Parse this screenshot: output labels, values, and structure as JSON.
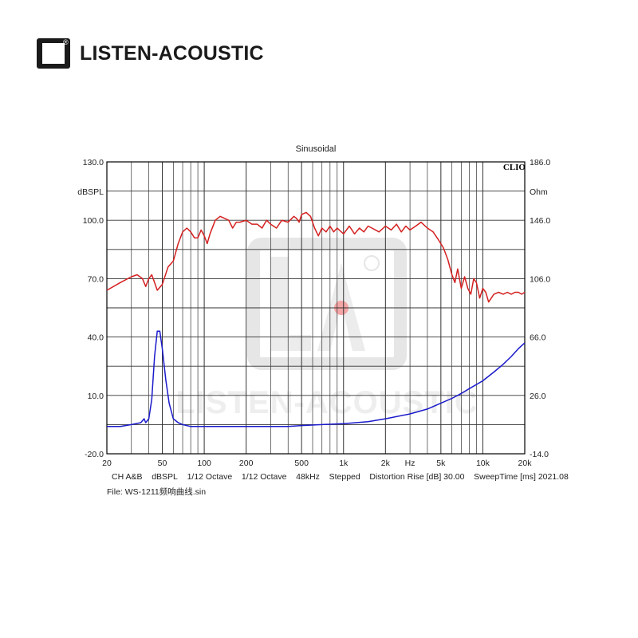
{
  "brand": {
    "logo_text": "LA",
    "registered_mark": "®",
    "name": "LISTEN-ACOUSTIC"
  },
  "chart_data": {
    "type": "line",
    "title": "Sinusoidal",
    "badge": "CLIO",
    "watermark": "LISTEN-ACOUSTIC",
    "x_scale": "log",
    "xlim": [
      20,
      20000
    ],
    "x_ticks": [
      20,
      50,
      100,
      200,
      500,
      1000,
      2000,
      5000,
      10000,
      20000
    ],
    "x_tick_labels": [
      "20",
      "50",
      "100",
      "200",
      "500",
      "1k",
      "2k",
      "5k",
      "10k",
      "20k"
    ],
    "x_unit_label": "Hz",
    "y_left": {
      "unit": "dBSPL",
      "lim": [
        -20,
        130
      ],
      "ticks": [
        130,
        100,
        70,
        40,
        10,
        -20
      ],
      "tick_labels": [
        "130.0",
        "100.0",
        "70.0",
        "40.0",
        "10.0",
        "-20.0"
      ]
    },
    "y_right": {
      "unit": "Ohm",
      "lim": [
        -14,
        186
      ],
      "ticks": [
        186,
        146,
        106,
        66,
        26,
        -14
      ],
      "tick_labels": [
        "186.0",
        "146.0",
        "106.0",
        "66.0",
        "26.0",
        "-14.0"
      ]
    },
    "grid": true,
    "series": [
      {
        "color": "#d42020",
        "axis": "left",
        "points": [
          [
            20,
            64
          ],
          [
            25,
            68
          ],
          [
            30,
            71
          ],
          [
            33,
            72
          ],
          [
            36,
            70
          ],
          [
            38,
            66
          ],
          [
            40,
            70
          ],
          [
            42,
            72
          ],
          [
            44,
            68
          ],
          [
            46,
            64
          ],
          [
            50,
            67
          ],
          [
            55,
            76
          ],
          [
            60,
            79
          ],
          [
            65,
            88
          ],
          [
            70,
            94
          ],
          [
            75,
            96
          ],
          [
            80,
            94
          ],
          [
            85,
            91
          ],
          [
            90,
            91
          ],
          [
            95,
            95
          ],
          [
            100,
            92
          ],
          [
            105,
            88
          ],
          [
            110,
            93
          ],
          [
            120,
            100
          ],
          [
            130,
            102
          ],
          [
            140,
            101
          ],
          [
            150,
            100
          ],
          [
            160,
            96
          ],
          [
            170,
            99
          ],
          [
            180,
            99
          ],
          [
            200,
            100
          ],
          [
            220,
            98
          ],
          [
            240,
            98
          ],
          [
            260,
            96
          ],
          [
            280,
            100
          ],
          [
            300,
            98
          ],
          [
            330,
            96
          ],
          [
            360,
            100
          ],
          [
            400,
            99
          ],
          [
            440,
            102
          ],
          [
            460,
            101
          ],
          [
            480,
            99
          ],
          [
            500,
            103
          ],
          [
            540,
            104
          ],
          [
            580,
            102
          ],
          [
            620,
            96
          ],
          [
            660,
            92
          ],
          [
            700,
            96
          ],
          [
            750,
            94
          ],
          [
            800,
            97
          ],
          [
            850,
            94
          ],
          [
            900,
            96
          ],
          [
            1000,
            93
          ],
          [
            1100,
            97
          ],
          [
            1200,
            93
          ],
          [
            1300,
            96
          ],
          [
            1400,
            94
          ],
          [
            1500,
            97
          ],
          [
            1600,
            96
          ],
          [
            1800,
            94
          ],
          [
            2000,
            97
          ],
          [
            2200,
            95
          ],
          [
            2400,
            98
          ],
          [
            2600,
            94
          ],
          [
            2800,
            97
          ],
          [
            3000,
            95
          ],
          [
            3300,
            97
          ],
          [
            3600,
            99
          ],
          [
            4000,
            96
          ],
          [
            4400,
            94
          ],
          [
            4800,
            90
          ],
          [
            5200,
            86
          ],
          [
            5600,
            80
          ],
          [
            6000,
            72
          ],
          [
            6300,
            68
          ],
          [
            6600,
            75
          ],
          [
            7000,
            65
          ],
          [
            7400,
            71
          ],
          [
            7800,
            65
          ],
          [
            8200,
            62
          ],
          [
            8600,
            70
          ],
          [
            9000,
            68
          ],
          [
            9500,
            60
          ],
          [
            10000,
            65
          ],
          [
            10500,
            63
          ],
          [
            11000,
            58
          ],
          [
            11500,
            60
          ],
          [
            12000,
            62
          ],
          [
            13000,
            63
          ],
          [
            14000,
            62
          ],
          [
            15000,
            63
          ],
          [
            16000,
            62
          ],
          [
            17000,
            63
          ],
          [
            18000,
            63
          ],
          [
            19000,
            62
          ],
          [
            20000,
            63
          ]
        ]
      },
      {
        "color": "#1a1acc",
        "axis": "left",
        "points": [
          [
            20,
            -6
          ],
          [
            25,
            -6
          ],
          [
            30,
            -5
          ],
          [
            35,
            -4
          ],
          [
            37,
            -2
          ],
          [
            38,
            -4
          ],
          [
            40,
            -2
          ],
          [
            42,
            8
          ],
          [
            44,
            30
          ],
          [
            46,
            43
          ],
          [
            48,
            43
          ],
          [
            50,
            34
          ],
          [
            53,
            18
          ],
          [
            56,
            6
          ],
          [
            60,
            -2
          ],
          [
            65,
            -4
          ],
          [
            70,
            -5
          ],
          [
            80,
            -6
          ],
          [
            100,
            -6
          ],
          [
            150,
            -6
          ],
          [
            200,
            -6
          ],
          [
            300,
            -6
          ],
          [
            400,
            -6
          ],
          [
            500,
            -5.5
          ],
          [
            700,
            -5
          ],
          [
            1000,
            -4.5
          ],
          [
            1500,
            -3.5
          ],
          [
            2000,
            -2
          ],
          [
            3000,
            0.5
          ],
          [
            4000,
            3
          ],
          [
            5000,
            6
          ],
          [
            6000,
            8.5
          ],
          [
            7000,
            11
          ],
          [
            8000,
            13.5
          ],
          [
            10000,
            17.5
          ],
          [
            12000,
            22
          ],
          [
            14000,
            26
          ],
          [
            16000,
            30
          ],
          [
            18000,
            34
          ],
          [
            20000,
            37
          ]
        ]
      }
    ],
    "footer": {
      "line1": [
        "CH A&B",
        "dBSPL",
        "1/12 Octave",
        "1/12 Octave",
        "48kHz",
        "Stepped",
        "Distortion Rise [dB] 30.00",
        "SweepTime [ms] 2021.08"
      ],
      "line2": "File: WS-1211频响曲线.sin"
    }
  }
}
